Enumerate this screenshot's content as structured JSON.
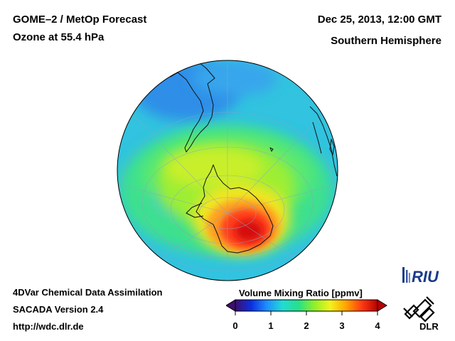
{
  "header": {
    "title_line1": "GOME–2 / MetOp Forecast",
    "title_line2": "Ozone at 55.4 hPa",
    "date": "Dec 25, 2013, 12:00 GMT",
    "region": "Southern Hemisphere"
  },
  "footer": {
    "line1": "4DVar Chemical Data Assimilation",
    "line2": "SACADA Version 2.4",
    "line3": "http://wdc.dlr.de"
  },
  "colorbar": {
    "title": "Volume Mixing Ratio [ppmv]",
    "ticks": [
      "0",
      "1",
      "2",
      "3",
      "4"
    ],
    "tick_values": [
      0,
      1,
      2,
      3,
      4
    ],
    "range": [
      0,
      4
    ],
    "colors": [
      "#3d0f6e",
      "#0b2fe0",
      "#1f8fff",
      "#22dcd4",
      "#26e08a",
      "#8ff02a",
      "#f2f21e",
      "#ffa500",
      "#ff3b14",
      "#b80000"
    ]
  },
  "map": {
    "background_color": "#31c3df",
    "projection": "orthographic"
  },
  "logos": {
    "riu_text": "RIU",
    "dlr_text": "DLR"
  }
}
